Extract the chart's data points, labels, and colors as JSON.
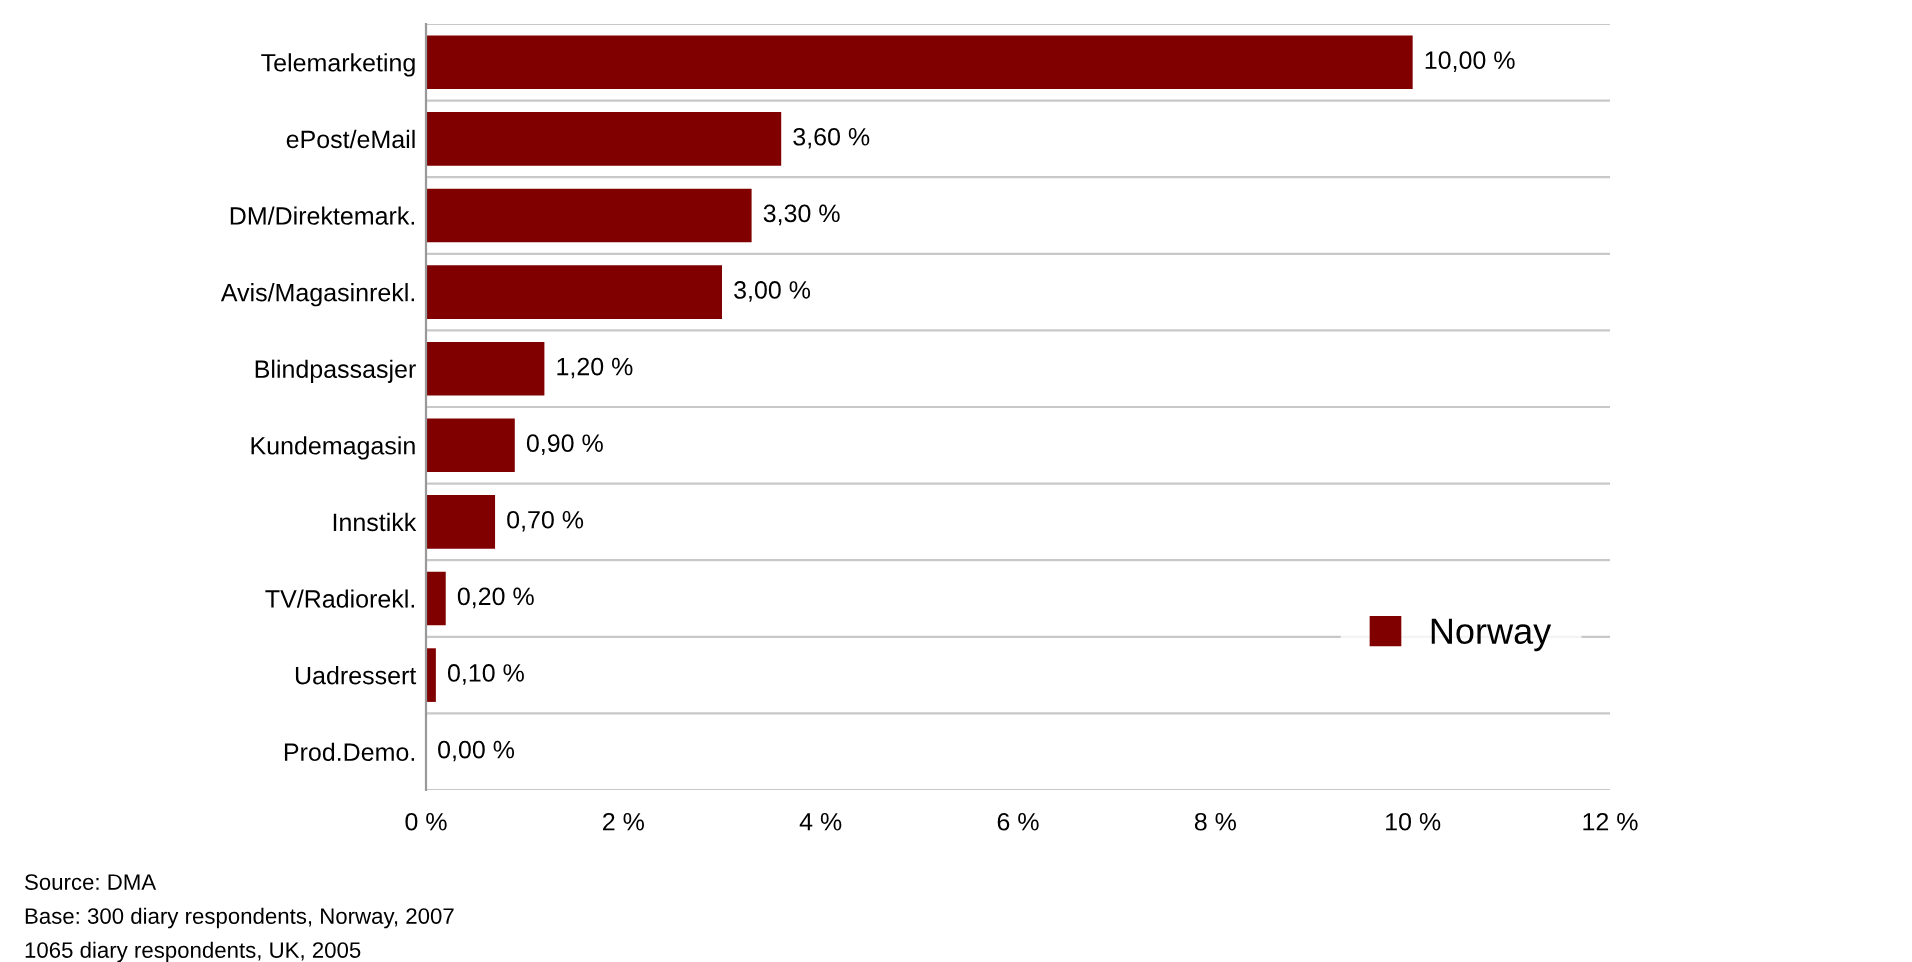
{
  "chart_data": {
    "type": "bar",
    "orientation": "horizontal",
    "categories": [
      "Telemarketing",
      "ePost/eMail",
      "DM/Direktemark.",
      "Avis/Magasinrekl.",
      "Blindpassasjer",
      "Kundemagasin",
      "Innstikk",
      "TV/Radiorekl.",
      "Uadressert",
      "Prod.Demo."
    ],
    "series": [
      {
        "name": "Norway",
        "color": "#800000",
        "values": [
          10,
          3.6,
          3.3,
          3.0,
          1.2,
          0.9,
          0.7,
          0.2,
          0.1,
          0.0
        ],
        "value_labels": [
          "10,00 %",
          "3,60 %",
          "3,30 %",
          "3,00 %",
          "1,20 %",
          "0,90 %",
          "0,70 %",
          "0,20 %",
          "0,10 %",
          "0,00 %"
        ]
      }
    ],
    "xlim": [
      0,
      12
    ],
    "xticks": [
      {
        "value": 0,
        "label": "0 %"
      },
      {
        "value": 2,
        "label": "2 %"
      },
      {
        "value": 4,
        "label": "4 %"
      },
      {
        "value": 6,
        "label": "6 %"
      },
      {
        "value": 8,
        "label": "8 %"
      },
      {
        "value": 10,
        "label": "10 %"
      },
      {
        "value": 12,
        "label": "12 %"
      }
    ],
    "grid": "y",
    "legend": "bottom right",
    "annotations": [
      "Source: DMA",
      "Base: 300 diary respondents, Norway, 2007",
      "1065 diary respondents, UK, 2005"
    ]
  }
}
